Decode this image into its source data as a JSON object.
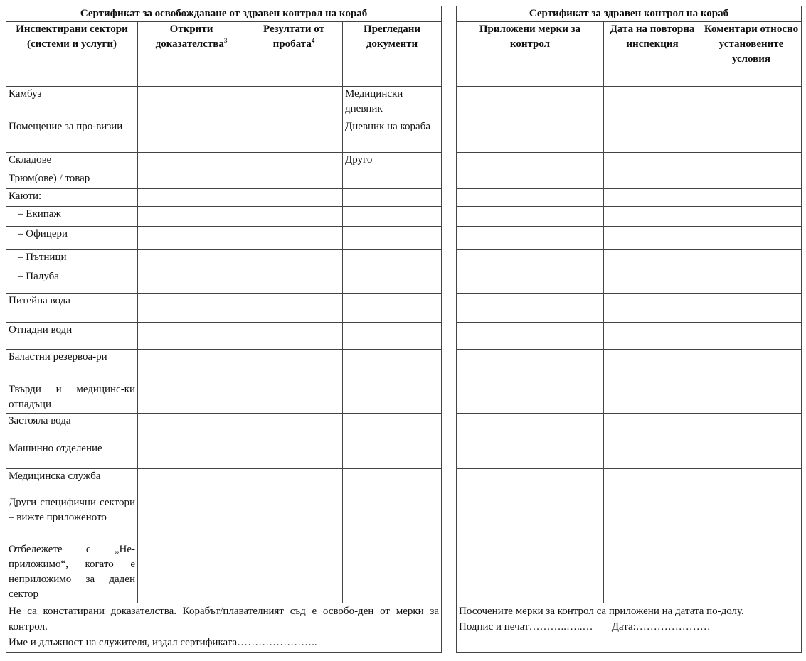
{
  "left": {
    "title": "Сертификат за освобождаване от здравен контрол на кораб",
    "headers": [
      "Инспектирани сектори (системи и услуги)",
      "Открити доказателства",
      "Резултати от пробата",
      "Прегледани документи"
    ],
    "header_sups": [
      "3",
      "4"
    ],
    "rows": [
      "Камбуз",
      "Помещение за про-визии",
      "Складове",
      "Трюм(ове) / товар",
      "Каюти:",
      "–   Екипаж",
      "–   Офицери",
      "–   Пътници",
      "–   Палуба",
      "Питейна вода",
      "Отпадни води",
      "Баластни резервоа-ри",
      "Твърди и медицинс-ки отпадъци",
      "Застояла вода",
      "Машинно отделение",
      "Медицинска служба",
      "Други специфични сектори – вижте приложеното",
      "Отбележете с „Не-приложимо“, когато е неприложимо за даден сектор"
    ],
    "documents": [
      "Медицински дневник",
      "Дневник на кораба",
      "Друго"
    ],
    "footer": [
      "Не са констатирани доказателства. Корабът/плавателният съд е освобо-ден от мерки за контрол.",
      "Име и длъжност на служителя, издал сертификата………………….."
    ]
  },
  "right": {
    "title": "Сертификат за здравен контрол на кораб",
    "headers": [
      "Приложени мерки за контрол",
      "Дата на повторна инспекция",
      "Коментари относно установените условия"
    ],
    "footer": [
      "Посочените мерки за контрол са приложени на датата по-долу.",
      "Подпис и печат………..…..…",
      "Дата:…………………"
    ]
  }
}
